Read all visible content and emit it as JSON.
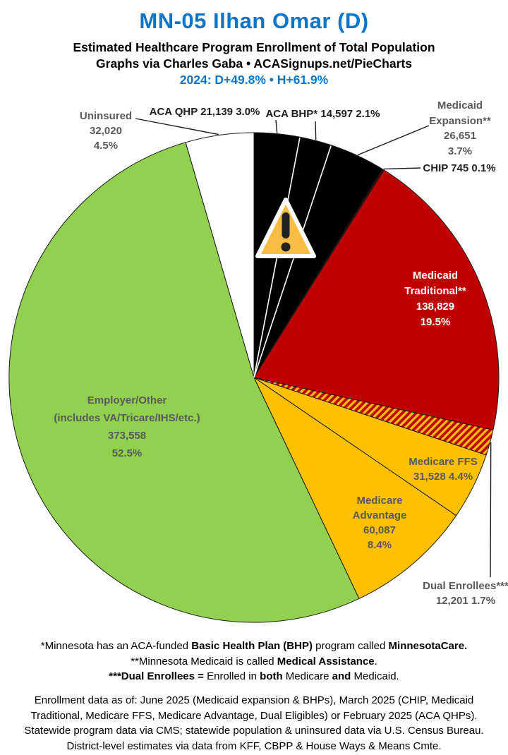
{
  "header": {
    "title": "MN-05 Ilhan Omar (D)",
    "subtitle_line1": "Estimated Healthcare Program Enrollment of Total Population",
    "subtitle_line2": "Graphs via Charles Gaba   •   ACASignups.net/PieCharts",
    "politics_line": "2024: D+49.8%  •  H+61.9%",
    "accent_color": "#0b76c9"
  },
  "chart_data": {
    "type": "pie",
    "title": "Estimated Healthcare Program Enrollment of Total Population",
    "start_angle": "top",
    "direction": "clockwise",
    "legend_position": "labels-around-pie",
    "hatch_colors": {
      "base": "#c00000",
      "stripe": "#ffc000"
    },
    "slices": [
      {
        "id": "aca-qhp",
        "name": "ACA QHP",
        "enrollment": 21139,
        "value_label": "21,139",
        "pct": 3.0,
        "pct_label": "3.0%",
        "color": "#000000"
      },
      {
        "id": "aca-bhp",
        "name": "ACA BHP*",
        "enrollment": 14597,
        "value_label": "14,597",
        "pct": 2.1,
        "pct_label": "2.1%",
        "color": "#000000"
      },
      {
        "id": "medicaid-expansion",
        "name": "Medicaid Expansion**",
        "enrollment": 26651,
        "value_label": "26,651",
        "pct": 3.7,
        "pct_label": "3.7%",
        "color": "#000000"
      },
      {
        "id": "chip",
        "name": "CHIP",
        "enrollment": 745,
        "value_label": "745",
        "pct": 0.1,
        "pct_label": "0.1%",
        "color": "#4a0505"
      },
      {
        "id": "medicaid-traditional",
        "name": "Medicaid Traditional**",
        "enrollment": 138829,
        "value_label": "138,829",
        "pct": 19.5,
        "pct_label": "19.5%",
        "color": "#c00000"
      },
      {
        "id": "dual-enrollees",
        "name": "Dual Enrollees***",
        "enrollment": 12201,
        "value_label": "12,201",
        "pct": 1.7,
        "pct_label": "1.7%",
        "color": "hatch"
      },
      {
        "id": "medicare-ffs",
        "name": "Medicare FFS",
        "enrollment": 31528,
        "value_label": "31,528",
        "pct": 4.4,
        "pct_label": "4.4%",
        "color": "#ffc000"
      },
      {
        "id": "medicare-advantage",
        "name": "Medicare Advantage",
        "enrollment": 60087,
        "value_label": "60,087",
        "pct": 8.4,
        "pct_label": "8.4%",
        "color": "#ffc000"
      },
      {
        "id": "employer-other",
        "name": "Employer/Other",
        "sub_label": "(includes VA/Tricare/IHS/etc.)",
        "enrollment": 373558,
        "value_label": "373,558",
        "pct": 52.5,
        "pct_label": "52.5%",
        "color": "#92d050"
      },
      {
        "id": "uninsured",
        "name": "Uninsured",
        "enrollment": 32020,
        "value_label": "32,020",
        "pct": 4.5,
        "pct_label": "4.5%",
        "color": "#ffffff"
      }
    ]
  },
  "icons": {
    "warning": "warning-triangle-icon"
  },
  "footnotes": [
    [
      {
        "t": "*Minnesota has an ACA-funded "
      },
      {
        "t": "Basic Health Plan (BHP)",
        "b": true
      },
      {
        "t": " program called "
      },
      {
        "t": "MinnesotaCare.",
        "b": true
      }
    ],
    [
      {
        "t": "**Minnesota Medicaid is called "
      },
      {
        "t": "Medical Assistance",
        "b": true
      },
      {
        "t": "."
      }
    ],
    [
      {
        "t": "***Dual Enrollees =",
        "b": true
      },
      {
        "t": " Enrolled in "
      },
      {
        "t": "both",
        "b": true
      },
      {
        "t": " Medicare "
      },
      {
        "t": "and",
        "b": true
      },
      {
        "t": " Medicaid."
      }
    ]
  ],
  "source_lines": [
    "Enrollment data as of: June 2025 (Medicaid expansion & BHPs), March 2025 (CHIP, Medicaid",
    "Traditional, Medicare FFS, Medicare Advantage, Dual Eligibles) or February 2025 (ACA QHPs).",
    "Statewide program data via CMS; statewide population & uninsured data via U.S. Census Bureau.",
    "District-level estimates via data from KFF, CBPP & House Ways & Means Cmte."
  ]
}
